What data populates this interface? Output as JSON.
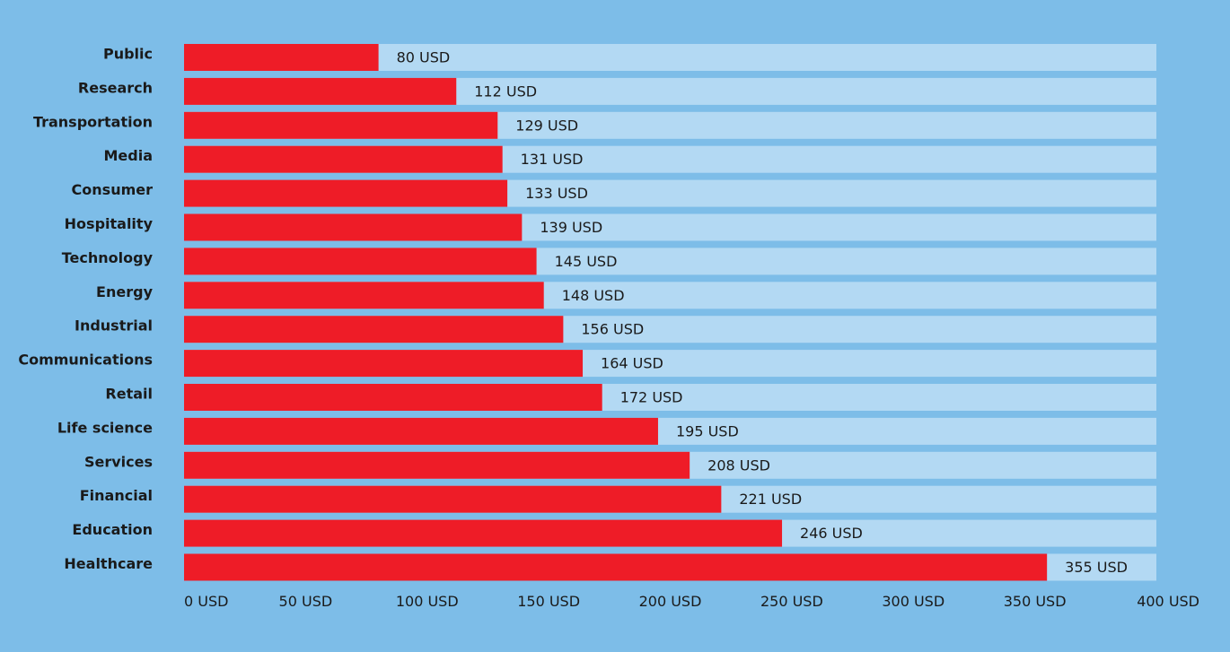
{
  "colors": {
    "background": "#7dbde8",
    "track": "#b3d9f3",
    "bar": "#ee1c27",
    "text": "#1a1a1a"
  },
  "chart_data": {
    "type": "bar",
    "orientation": "horizontal",
    "categories": [
      "Public",
      "Research",
      "Transportation",
      "Media",
      "Consumer",
      "Hospitality",
      "Technology",
      "Energy",
      "Industrial",
      "Communications",
      "Retail",
      "Life science",
      "Services",
      "Financial",
      "Education",
      "Healthcare"
    ],
    "values": [
      80,
      112,
      129,
      131,
      133,
      139,
      145,
      148,
      156,
      164,
      172,
      195,
      208,
      221,
      246,
      355
    ],
    "value_labels": [
      "80 USD",
      "112 USD",
      "129 USD",
      "131 USD",
      "133 USD",
      "139 USD",
      "145 USD",
      "148 USD",
      "156 USD",
      "164 USD",
      "172 USD",
      "195 USD",
      "208 USD",
      "221 USD",
      "246 USD",
      "355 USD"
    ],
    "xlim": [
      0,
      400
    ],
    "x_ticks": [
      0,
      50,
      100,
      150,
      200,
      250,
      300,
      350,
      400
    ],
    "x_tick_labels": [
      "0 USD",
      "50 USD",
      "100 USD",
      "150 USD",
      "200 USD",
      "250 USD",
      "300 USD",
      "350 USD",
      "400 USD"
    ],
    "grid": false,
    "legend": "none"
  }
}
